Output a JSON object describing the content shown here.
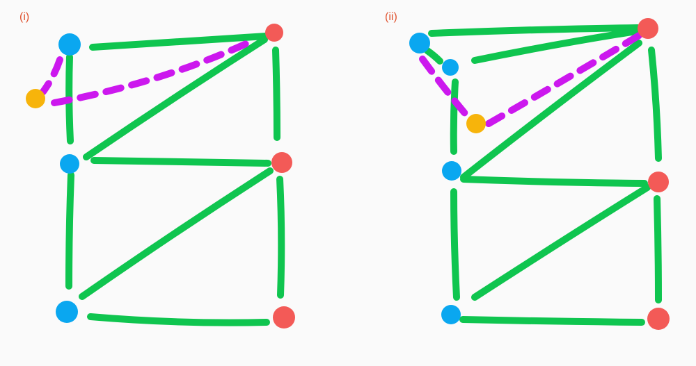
{
  "panels": [
    {
      "label": "(i)"
    },
    {
      "label": "(ii)"
    }
  ],
  "colors": {
    "background": "#fafafa",
    "edge": "#0fc54f",
    "dashed_edge": "#cc18ee",
    "blue_node": "#0aa7f0",
    "red_node": "#f35a57",
    "orange_node": "#f7b40b",
    "label": "#e0522f"
  }
}
